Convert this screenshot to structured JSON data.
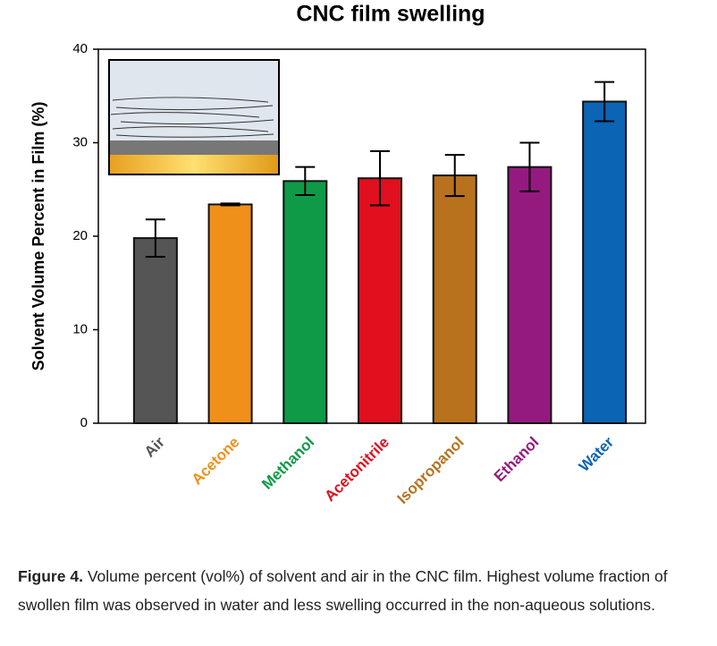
{
  "chart_data": {
    "type": "bar",
    "title": "CNC film swelling",
    "y_label": "Solvent Volume Percent in Film (%)",
    "categories": [
      "Air",
      "Acetone",
      "Methanol",
      "Acetonitrile",
      "Isopropanol",
      "Ethanol",
      "Water"
    ],
    "values": [
      19.8,
      23.4,
      25.9,
      26.2,
      26.5,
      27.4,
      34.4
    ],
    "errors": [
      2.0,
      0.1,
      1.5,
      2.9,
      2.2,
      2.6,
      2.1
    ],
    "colors": [
      "#555555",
      "#f0901a",
      "#0f9a48",
      "#e0101e",
      "#b8721e",
      "#941a80",
      "#0c64b4"
    ],
    "ylim": [
      0,
      40
    ],
    "yticks": [
      0,
      10,
      20,
      30,
      40
    ]
  },
  "caption": {
    "label": "Figure 4.",
    "text": "Volume percent (vol%) of solvent and air in the CNC film. Highest volume fraction of swollen film was observed in water and less swelling occurred in the non-aqueous solutions."
  }
}
